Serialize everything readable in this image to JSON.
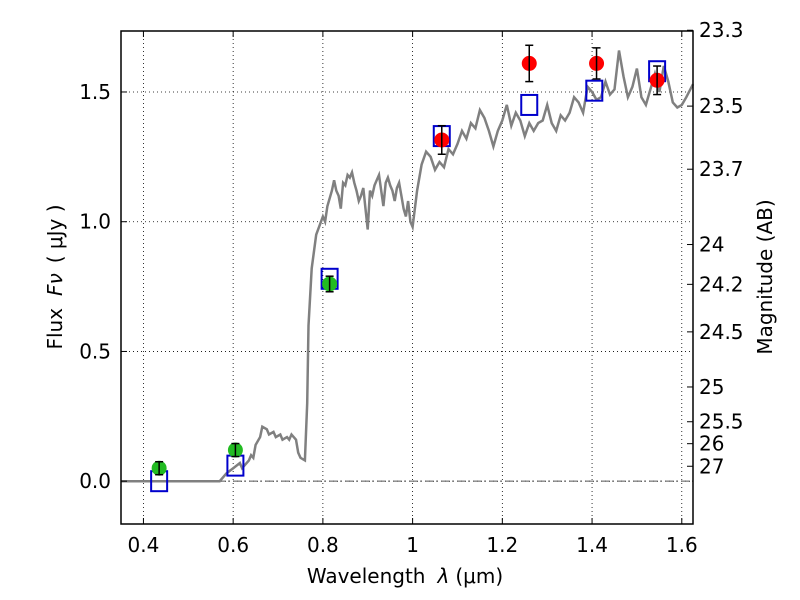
{
  "chart_data": {
    "type": "line",
    "title": "",
    "xlabel_prefix": "Wavelength",
    "xlabel_symbol": "λ",
    "xlabel_unit": "(μm)",
    "ylabel": "Flux",
    "ylabel_symbol": "Fν",
    "ylabel_unit": "( μJy )",
    "y2label": "Magnitude (AB)",
    "xlim": [
      0.35,
      1.625
    ],
    "ylim": [
      -0.165,
      1.735
    ],
    "grid": true,
    "x_ticks": [
      {
        "value": 0.4,
        "label": "0.4"
      },
      {
        "value": 0.6,
        "label": "0.6"
      },
      {
        "value": 0.8,
        "label": "0.8"
      },
      {
        "value": 1.0,
        "label": "1"
      },
      {
        "value": 1.2,
        "label": "1.2"
      },
      {
        "value": 1.4,
        "label": "1.4"
      },
      {
        "value": 1.6,
        "label": "1.6"
      }
    ],
    "y_ticks": [
      {
        "value": 0.0,
        "label": "0.0"
      },
      {
        "value": 0.5,
        "label": "0.5"
      },
      {
        "value": 1.0,
        "label": "1.0"
      },
      {
        "value": 1.5,
        "label": "1.5"
      }
    ],
    "mag_ticks": [
      {
        "value": 23.3,
        "label": "23.3"
      },
      {
        "value": 23.5,
        "label": "23.5"
      },
      {
        "value": 23.7,
        "label": "23.7"
      },
      {
        "value": 24.0,
        "label": "24"
      },
      {
        "value": 24.2,
        "label": "24.2"
      },
      {
        "value": 24.5,
        "label": "24.5"
      },
      {
        "value": 25.0,
        "label": "25"
      },
      {
        "value": 25.5,
        "label": "25.5"
      },
      {
        "value": 26.0,
        "label": "26"
      },
      {
        "value": 27.0,
        "label": "27"
      }
    ],
    "colors": {
      "spectrum": "#808080",
      "green_points": "#22bb22",
      "red_points": "#ff0000",
      "model_boxes": "#0000cc",
      "errorbars": "#000000"
    },
    "series": [
      {
        "name": "model spectrum",
        "kind": "line",
        "x": [
          0.35,
          0.42,
          0.5,
          0.57,
          0.585,
          0.6,
          0.615,
          0.62,
          0.635,
          0.64,
          0.645,
          0.65,
          0.66,
          0.665,
          0.675,
          0.68,
          0.69,
          0.695,
          0.705,
          0.71,
          0.72,
          0.725,
          0.73,
          0.74,
          0.745,
          0.75,
          0.76,
          0.765,
          0.768,
          0.775,
          0.785,
          0.8,
          0.805,
          0.81,
          0.82,
          0.825,
          0.83,
          0.835,
          0.84,
          0.845,
          0.85,
          0.855,
          0.86,
          0.865,
          0.87,
          0.875,
          0.88,
          0.885,
          0.89,
          0.895,
          0.9,
          0.905,
          0.91,
          0.915,
          0.92,
          0.925,
          0.93,
          0.935,
          0.94,
          0.945,
          0.95,
          0.955,
          0.96,
          0.965,
          0.97,
          0.975,
          0.98,
          0.985,
          0.99,
          0.995,
          1.0,
          1.01,
          1.02,
          1.03,
          1.04,
          1.05,
          1.06,
          1.07,
          1.08,
          1.09,
          1.1,
          1.11,
          1.12,
          1.13,
          1.14,
          1.15,
          1.16,
          1.17,
          1.18,
          1.19,
          1.2,
          1.21,
          1.22,
          1.23,
          1.24,
          1.25,
          1.26,
          1.27,
          1.28,
          1.29,
          1.3,
          1.31,
          1.32,
          1.33,
          1.34,
          1.35,
          1.36,
          1.37,
          1.38,
          1.39,
          1.4,
          1.41,
          1.42,
          1.43,
          1.44,
          1.45,
          1.46,
          1.47,
          1.48,
          1.49,
          1.5,
          1.51,
          1.52,
          1.53,
          1.54,
          1.55,
          1.56,
          1.57,
          1.58,
          1.59,
          1.6,
          1.61,
          1.625
        ],
        "y": [
          0.0,
          0.0,
          0.0,
          0.0,
          0.03,
          0.05,
          0.07,
          0.05,
          0.08,
          0.1,
          0.09,
          0.14,
          0.17,
          0.21,
          0.2,
          0.18,
          0.19,
          0.17,
          0.18,
          0.16,
          0.17,
          0.16,
          0.18,
          0.16,
          0.11,
          0.09,
          0.08,
          0.3,
          0.6,
          0.82,
          0.95,
          1.02,
          1.0,
          1.06,
          1.12,
          1.16,
          1.12,
          1.1,
          1.05,
          1.15,
          1.14,
          1.18,
          1.17,
          1.19,
          1.15,
          1.12,
          1.08,
          1.1,
          1.13,
          1.05,
          0.97,
          1.12,
          1.1,
          1.14,
          1.16,
          1.18,
          1.12,
          1.06,
          1.15,
          1.17,
          1.14,
          1.12,
          1.08,
          1.13,
          1.15,
          1.1,
          1.05,
          1.02,
          1.08,
          1.0,
          0.98,
          1.12,
          1.22,
          1.27,
          1.25,
          1.2,
          1.23,
          1.21,
          1.28,
          1.26,
          1.3,
          1.35,
          1.32,
          1.38,
          1.36,
          1.43,
          1.4,
          1.35,
          1.29,
          1.35,
          1.39,
          1.45,
          1.37,
          1.42,
          1.39,
          1.33,
          1.38,
          1.35,
          1.38,
          1.39,
          1.45,
          1.38,
          1.35,
          1.41,
          1.39,
          1.42,
          1.48,
          1.46,
          1.42,
          1.52,
          1.5,
          1.47,
          1.48,
          1.54,
          1.49,
          1.51,
          1.66,
          1.56,
          1.48,
          1.52,
          1.59,
          1.48,
          1.45,
          1.51,
          1.57,
          1.5,
          1.6,
          1.54,
          1.46,
          1.44,
          1.45,
          1.48,
          1.53
        ]
      },
      {
        "name": "observed (green)",
        "kind": "points",
        "x": [
          0.435,
          0.605,
          0.815
        ],
        "y": [
          0.05,
          0.12,
          0.76
        ],
        "yerr": [
          0.025,
          0.025,
          0.03
        ]
      },
      {
        "name": "observed (red)",
        "kind": "points",
        "x": [
          1.065,
          1.26,
          1.41,
          1.545
        ],
        "y": [
          1.315,
          1.61,
          1.61,
          1.545
        ],
        "yerr": [
          0.055,
          0.07,
          0.06,
          0.055
        ]
      },
      {
        "name": "model photometry",
        "kind": "boxes",
        "x": [
          0.435,
          0.605,
          0.815,
          1.065,
          1.26,
          1.405,
          1.545
        ],
        "y": [
          0.0,
          0.06,
          0.78,
          1.33,
          1.45,
          1.505,
          1.58
        ]
      }
    ]
  }
}
